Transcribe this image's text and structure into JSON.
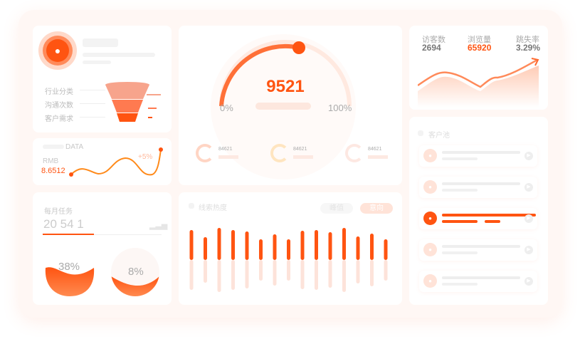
{
  "funnel": {
    "items": [
      "行业分类",
      "沟通次数",
      "客户需求"
    ]
  },
  "rmb": {
    "section": "DATA",
    "currency": "RMB",
    "value": "8.6512",
    "change": "+5%"
  },
  "tasks": {
    "title": "每月任务",
    "value": "20 54 1",
    "progress_pct": 38,
    "gauges": [
      {
        "label": "38%",
        "value": 38
      },
      {
        "label": "8%",
        "value": 8
      }
    ]
  },
  "gauge": {
    "value": "9521",
    "min": "0%",
    "max": "100%"
  },
  "mini_stats": [
    "84621",
    "84621",
    "84621"
  ],
  "heat": {
    "title": "线索热度",
    "buttons": [
      "峰值",
      "意向"
    ],
    "bars": [
      42,
      32,
      45,
      42,
      40,
      29,
      36,
      29,
      41,
      42,
      39,
      45,
      33,
      37,
      29
    ]
  },
  "stats": [
    {
      "label": "访客数",
      "value": "2694"
    },
    {
      "label": "浏览量",
      "value": "65920"
    },
    {
      "label": "跳失率",
      "value": "3.29%"
    }
  ],
  "customers": {
    "title": "客户池",
    "count": 5,
    "active_index": 2
  },
  "colors": {
    "accent": "#ff5411",
    "light": "#ffe3d8"
  }
}
